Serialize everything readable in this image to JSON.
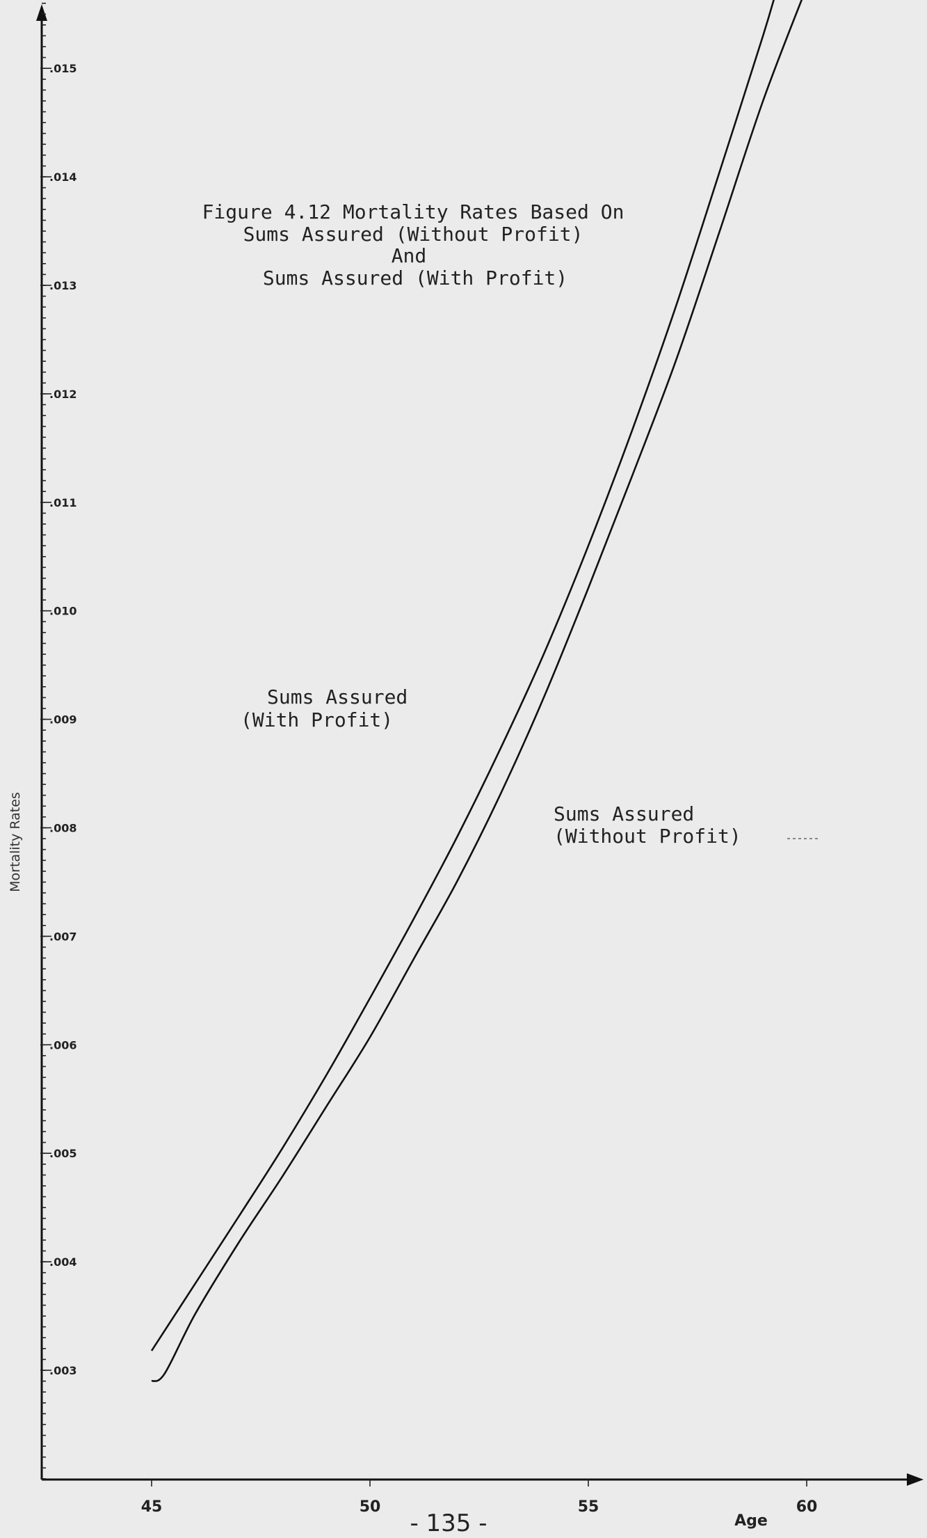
{
  "chart_data": {
    "type": "line",
    "title_lines": [
      "Figure 4.12 Mortality Rates Based On",
      "Sums Assured (Without Profit)",
      "And",
      "Sums Assured (With Profit)"
    ],
    "xlabel": "Age",
    "ylabel": "Mortality Rates",
    "xlim": [
      45,
      62.5
    ],
    "ylim": [
      0.002,
      0.0162
    ],
    "x_ticks": [
      45,
      50,
      55,
      60
    ],
    "x_tick_labels": [
      "45",
      "50",
      "55",
      "60"
    ],
    "y_ticks": [
      0.003,
      0.004,
      0.005,
      0.006,
      0.007,
      0.008,
      0.009,
      0.01,
      0.011,
      0.012,
      0.013,
      0.014,
      0.015
    ],
    "y_tick_labels": [
      ".003",
      ".004",
      ".005",
      ".006",
      ".007",
      ".008",
      ".009",
      ".010",
      ".011",
      ".012",
      ".013",
      ".014",
      ".015"
    ],
    "series": [
      {
        "name": "Sums Assured (With Profit)",
        "label_lines": [
          "Sums Assured",
          "(With Profit)"
        ],
        "points": [
          [
            45,
            0.00318
          ],
          [
            46,
            0.0038
          ],
          [
            47,
            0.00442
          ],
          [
            48,
            0.00505
          ],
          [
            49,
            0.00572
          ],
          [
            50,
            0.00643
          ],
          [
            51,
            0.00716
          ],
          [
            52,
            0.00792
          ],
          [
            53,
            0.00874
          ],
          [
            54,
            0.00962
          ],
          [
            55,
            0.0106
          ],
          [
            56,
            0.01166
          ],
          [
            57,
            0.0128
          ],
          [
            58,
            0.01404
          ],
          [
            59,
            0.0153
          ],
          [
            59.4,
            0.01585
          ]
        ]
      },
      {
        "name": "Sums Assured (Without Profit)",
        "label_lines": [
          "Sums Assured",
          "(Without Profit)"
        ],
        "points": [
          [
            45,
            0.0029
          ],
          [
            45.3,
            0.00297
          ],
          [
            46,
            0.00352
          ],
          [
            47,
            0.00418
          ],
          [
            48,
            0.00479
          ],
          [
            49,
            0.00543
          ],
          [
            50,
            0.00607
          ],
          [
            51,
            0.00679
          ],
          [
            52,
            0.00751
          ],
          [
            53,
            0.00832
          ],
          [
            54,
            0.00922
          ],
          [
            55,
            0.01021
          ],
          [
            56,
            0.01124
          ],
          [
            57,
            0.0123
          ],
          [
            58,
            0.01349
          ],
          [
            59,
            0.0147
          ],
          [
            60,
            0.01575
          ]
        ]
      }
    ],
    "grid": false,
    "legend": "none",
    "page_number": "- 135 -"
  }
}
